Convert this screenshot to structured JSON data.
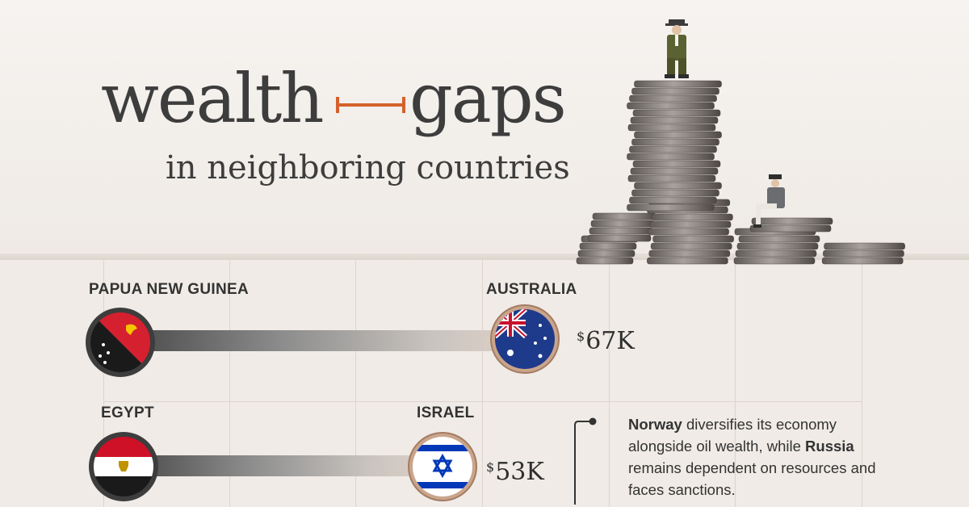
{
  "title": {
    "word1": "wealth",
    "word2": "gaps",
    "subtitle": "in neighboring countries"
  },
  "colors": {
    "accent": "#d4612c",
    "background": "#f0ebe6",
    "text": "#3d3d3d",
    "bar_dark": "#4a4a4a",
    "ring_high": "#c9a58c"
  },
  "pairs": [
    {
      "low": {
        "name": "PAPUA NEW GUINEA",
        "flag": "papua-new-guinea-flag"
      },
      "high": {
        "name": "AUSTRALIA",
        "flag": "australia-flag"
      },
      "gap_label": "$67K",
      "gap_currency": "$",
      "gap_amount": "67K"
    },
    {
      "low": {
        "name": "EGYPT",
        "flag": "egypt-flag"
      },
      "high": {
        "name": "ISRAEL",
        "flag": "israel-flag"
      },
      "gap_label": "$53K",
      "gap_currency": "$",
      "gap_amount": "53K"
    }
  ],
  "chart_data": {
    "type": "bar",
    "title": "wealth gaps in neighboring countries",
    "categories": [
      "PAPUA NEW GUINEA – AUSTRALIA",
      "EGYPT – ISRAEL"
    ],
    "series": [
      {
        "values": [
          67,
          53
        ]
      }
    ],
    "value_labels": [
      "$67K",
      "$53K"
    ]
  },
  "annotation": {
    "bold1": "Norway",
    "text1": " diversifies its economy alongside oil wealth, while ",
    "bold2": "Russia",
    "text2": " remains dependent on resources and faces sanctions."
  }
}
